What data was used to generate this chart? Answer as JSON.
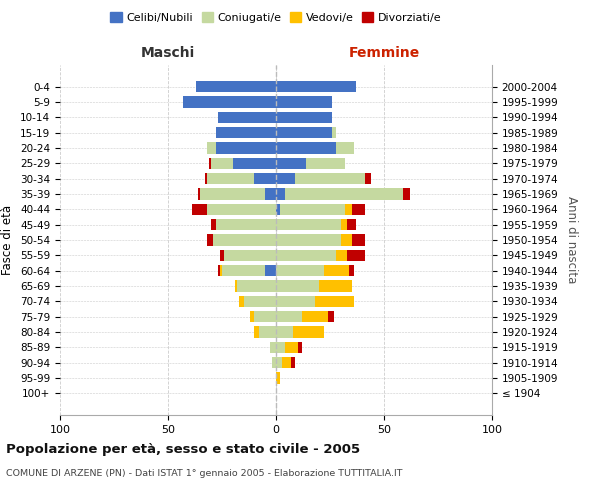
{
  "age_groups": [
    "100+",
    "95-99",
    "90-94",
    "85-89",
    "80-84",
    "75-79",
    "70-74",
    "65-69",
    "60-64",
    "55-59",
    "50-54",
    "45-49",
    "40-44",
    "35-39",
    "30-34",
    "25-29",
    "20-24",
    "15-19",
    "10-14",
    "5-9",
    "0-4"
  ],
  "birth_years": [
    "≤ 1904",
    "1905-1909",
    "1910-1914",
    "1915-1919",
    "1920-1924",
    "1925-1929",
    "1930-1934",
    "1935-1939",
    "1940-1944",
    "1945-1949",
    "1950-1954",
    "1955-1959",
    "1960-1964",
    "1965-1969",
    "1970-1974",
    "1975-1979",
    "1980-1984",
    "1985-1989",
    "1990-1994",
    "1995-1999",
    "2000-2004"
  ],
  "male": {
    "celibi": [
      0,
      0,
      0,
      0,
      0,
      0,
      0,
      0,
      5,
      0,
      0,
      0,
      0,
      5,
      10,
      20,
      28,
      28,
      27,
      43,
      37
    ],
    "coniugati": [
      0,
      0,
      2,
      3,
      8,
      10,
      15,
      18,
      20,
      24,
      29,
      28,
      32,
      30,
      22,
      10,
      4,
      0,
      0,
      0,
      0
    ],
    "vedovi": [
      0,
      0,
      0,
      0,
      2,
      2,
      2,
      1,
      1,
      0,
      0,
      0,
      0,
      0,
      0,
      0,
      0,
      0,
      0,
      0,
      0
    ],
    "divorziati": [
      0,
      0,
      0,
      0,
      0,
      0,
      0,
      0,
      1,
      2,
      3,
      2,
      7,
      1,
      1,
      1,
      0,
      0,
      0,
      0,
      0
    ]
  },
  "female": {
    "nubili": [
      0,
      0,
      0,
      0,
      0,
      0,
      0,
      0,
      0,
      0,
      0,
      0,
      2,
      4,
      9,
      14,
      28,
      26,
      26,
      26,
      37
    ],
    "coniugate": [
      0,
      0,
      3,
      4,
      8,
      12,
      18,
      20,
      22,
      28,
      30,
      30,
      30,
      55,
      32,
      18,
      8,
      2,
      0,
      0,
      0
    ],
    "vedove": [
      0,
      2,
      4,
      6,
      14,
      12,
      18,
      15,
      12,
      5,
      5,
      3,
      3,
      0,
      0,
      0,
      0,
      0,
      0,
      0,
      0
    ],
    "divorziate": [
      0,
      0,
      2,
      2,
      0,
      3,
      0,
      0,
      2,
      8,
      6,
      4,
      6,
      3,
      3,
      0,
      0,
      0,
      0,
      0,
      0
    ]
  },
  "colors": {
    "celibi_nubili": "#4472c4",
    "coniugati": "#c5d9a0",
    "vedovi": "#ffc000",
    "divorziati": "#c00000"
  },
  "xlim": [
    -100,
    100
  ],
  "xticks": [
    -100,
    -50,
    0,
    50,
    100
  ],
  "xticklabels": [
    "100",
    "50",
    "0",
    "50",
    "100"
  ],
  "title": "Popolazione per età, sesso e stato civile - 2005",
  "subtitle": "COMUNE DI ARZENE (PN) - Dati ISTAT 1° gennaio 2005 - Elaborazione TUTTITALIA.IT",
  "ylabel": "Fasce di età",
  "ylabel2": "Anni di nascita",
  "legend_labels": [
    "Celibi/Nubili",
    "Coniugati/e",
    "Vedovi/e",
    "Divorziati/e"
  ],
  "background_color": "#ffffff",
  "grid_color": "#cccccc"
}
